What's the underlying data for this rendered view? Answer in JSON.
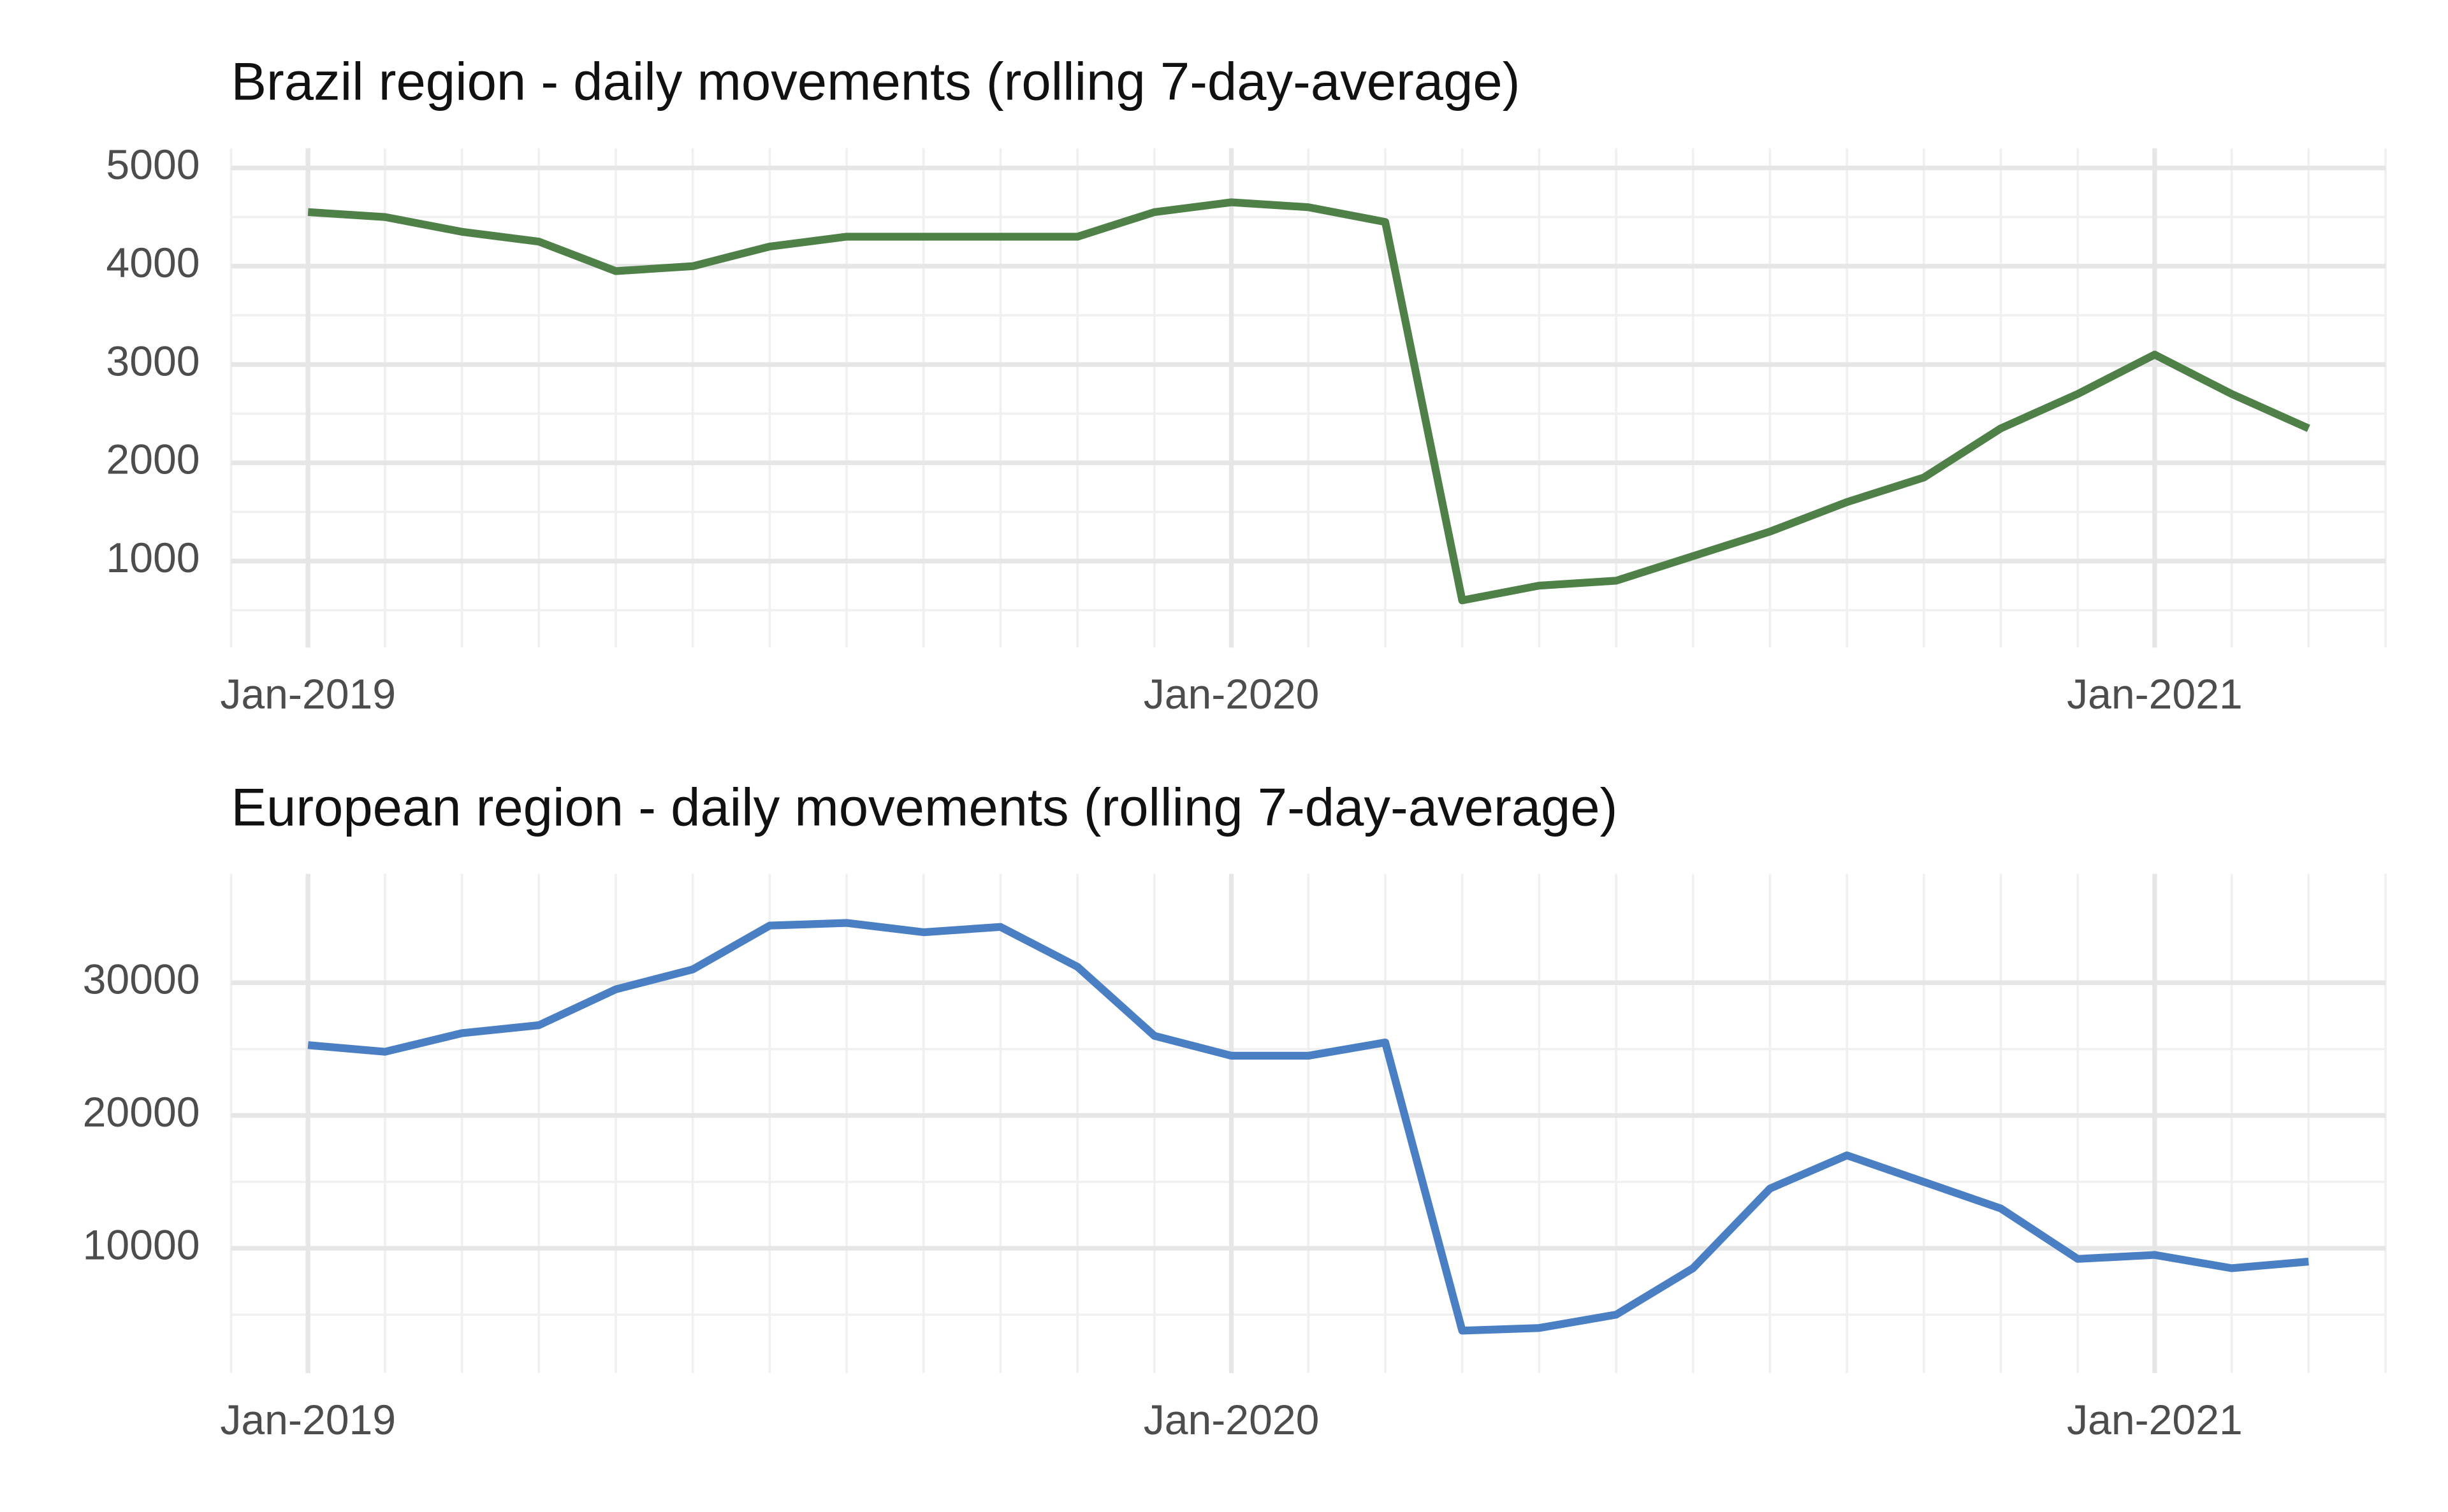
{
  "chart_data": [
    {
      "type": "line",
      "title": "Brazil region - daily movements (rolling 7-day-average)",
      "x": [
        "2019-01",
        "2019-02",
        "2019-03",
        "2019-04",
        "2019-05",
        "2019-06",
        "2019-07",
        "2019-08",
        "2019-09",
        "2019-10",
        "2019-11",
        "2019-12",
        "2020-01",
        "2020-02",
        "2020-03",
        "2020-04",
        "2020-05",
        "2020-06",
        "2020-07",
        "2020-08",
        "2020-09",
        "2020-10",
        "2020-11",
        "2020-12",
        "2021-01",
        "2021-02",
        "2021-03"
      ],
      "series": [
        {
          "color": "#4e8048",
          "values": [
            4550,
            4500,
            4350,
            4250,
            3950,
            4000,
            4200,
            4300,
            4300,
            4300,
            4300,
            4550,
            4650,
            4600,
            4450,
            600,
            750,
            800,
            1050,
            1300,
            1600,
            1850,
            2350,
            2700,
            3100,
            2700,
            2350
          ]
        }
      ],
      "xlim": [
        "2018-12",
        "2021-04"
      ],
      "xticks": [
        {
          "value": "2019-01",
          "label": "Jan-2019"
        },
        {
          "value": "2020-01",
          "label": "Jan-2020"
        },
        {
          "value": "2021-01",
          "label": "Jan-2021"
        }
      ],
      "ylim": [
        120,
        5200
      ],
      "yticks": [
        1000,
        2000,
        3000,
        4000,
        5000
      ],
      "grid": true
    },
    {
      "type": "line",
      "title": "European region - daily movements (rolling 7-day-average)",
      "x": [
        "2019-01",
        "2019-02",
        "2019-03",
        "2019-04",
        "2019-05",
        "2019-06",
        "2019-07",
        "2019-08",
        "2019-09",
        "2019-10",
        "2019-11",
        "2019-12",
        "2020-01",
        "2020-02",
        "2020-03",
        "2020-04",
        "2020-05",
        "2020-06",
        "2020-07",
        "2020-08",
        "2020-09",
        "2020-10",
        "2020-11",
        "2020-12",
        "2021-01",
        "2021-02",
        "2021-03"
      ],
      "series": [
        {
          "color": "#4a7fc4",
          "values": [
            25300,
            24800,
            26200,
            26800,
            29500,
            31000,
            34300,
            34500,
            33800,
            34200,
            31200,
            26000,
            24500,
            24500,
            25500,
            3800,
            4000,
            5000,
            8500,
            14500,
            17000,
            15000,
            13000,
            9200,
            9500,
            8500,
            9000
          ]
        }
      ],
      "xlim": [
        "2018-12",
        "2021-04"
      ],
      "xticks": [
        {
          "value": "2019-01",
          "label": "Jan-2019"
        },
        {
          "value": "2020-01",
          "label": "Jan-2020"
        },
        {
          "value": "2021-01",
          "label": "Jan-2021"
        }
      ],
      "ylim": [
        600,
        38200
      ],
      "yticks": [
        10000,
        20000,
        30000
      ],
      "grid": true
    }
  ]
}
